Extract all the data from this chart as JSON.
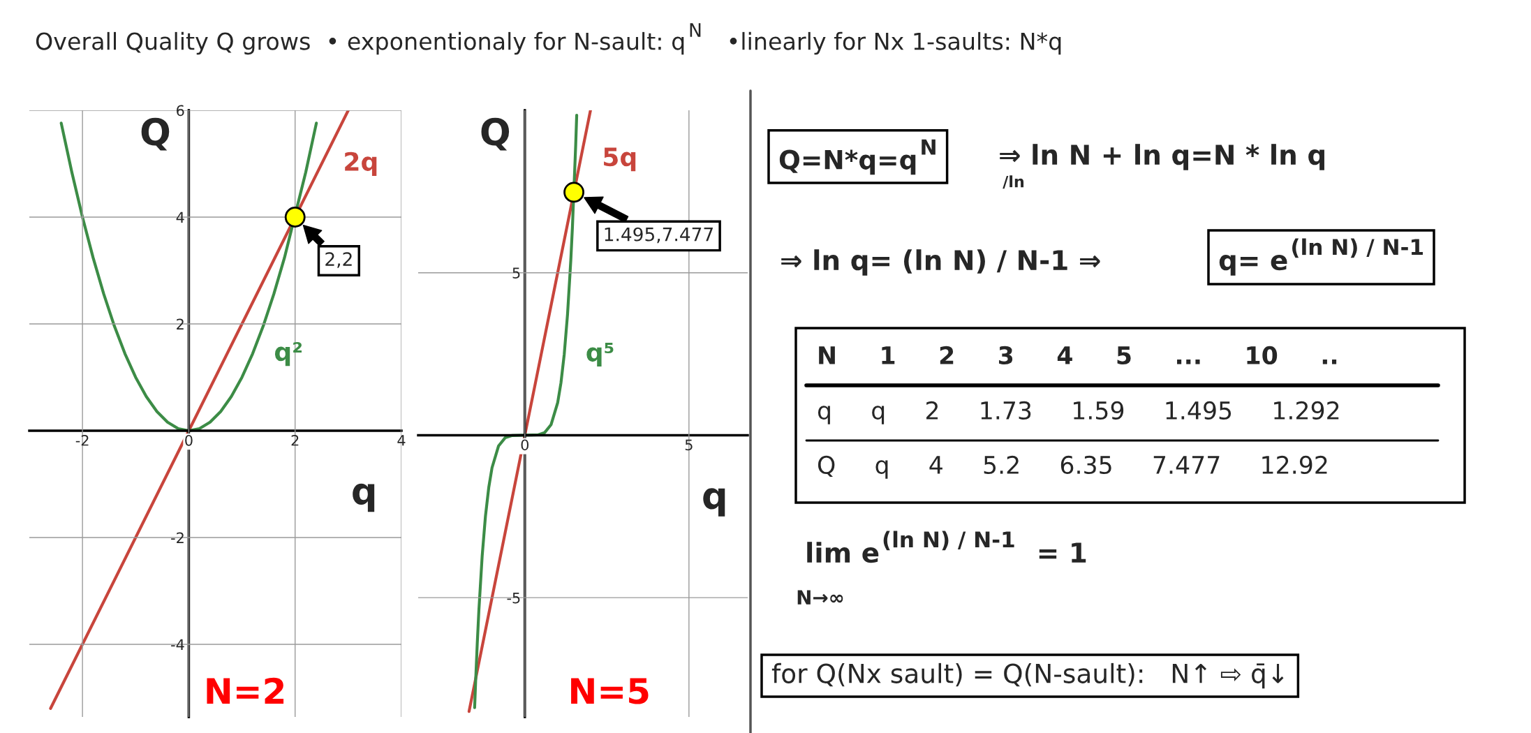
{
  "chart_data": [
    {
      "type": "line",
      "xlabel": "q",
      "ylabel": "Q",
      "xlim": [
        -3,
        4
      ],
      "ylim": [
        -5.36,
        6
      ],
      "xticks": [
        -2,
        0,
        2,
        4
      ],
      "yticks": [
        -4,
        -2,
        2,
        4,
        6
      ],
      "grid": true,
      "series": [
        {
          "name": "2q",
          "color": "#c8453c",
          "x": [
            -2.6,
            0,
            1,
            2.5,
            3
          ],
          "values": [
            -5.2,
            0,
            2,
            5,
            6
          ]
        },
        {
          "name": "q²",
          "color": "#3c8c46",
          "x": [
            -2.4,
            -2.2,
            -2.0,
            -1.8,
            -1.6,
            -1.4,
            -1.2,
            -1.0,
            -0.8,
            -0.6,
            -0.4,
            -0.2,
            0,
            0.2,
            0.4,
            0.6,
            0.8,
            1.0,
            1.2,
            1.4,
            1.6,
            1.8,
            2.2,
            2.4
          ],
          "values": [
            5.76,
            4.84,
            4.0,
            3.24,
            2.56,
            1.96,
            1.44,
            1.0,
            0.64,
            0.36,
            0.16,
            0.04,
            0,
            0.04,
            0.16,
            0.36,
            0.64,
            1.0,
            1.44,
            1.96,
            2.56,
            3.24,
            4.84,
            5.76
          ]
        },
        {
          "type": "scatter",
          "color": "#ffff00",
          "marker": "circle",
          "x": [
            2
          ],
          "values": [
            4
          ]
        }
      ],
      "annotations": [
        {
          "text": "2,2",
          "x": 2,
          "y": 4
        },
        "N=2"
      ]
    },
    {
      "type": "line",
      "xlabel": "q",
      "ylabel": "Q",
      "xlim": [
        -3.25,
        6.79
      ],
      "ylim": [
        -8.67,
        10
      ],
      "xticks": [
        0,
        5
      ],
      "yticks": [
        -5,
        5
      ],
      "grid": true,
      "series": [
        {
          "name": "5q",
          "color": "#c8453c",
          "x": [
            -1.7,
            0,
            1,
            1.7,
            2
          ],
          "values": [
            -8.5,
            0,
            5,
            8.5,
            10
          ]
        },
        {
          "name": "q⁵",
          "color": "#3c8c46",
          "x": [
            -1.53,
            -1.5,
            -1.45,
            -1.4,
            -1.3,
            -1.2,
            -1.1,
            -1.0,
            -0.8,
            -0.6,
            -0.4,
            0,
            0.4,
            0.6,
            0.8,
            1.0,
            1.1,
            1.2,
            1.3,
            1.4,
            1.45,
            1.55,
            1.58
          ],
          "values": [
            -8.384,
            -7.594,
            -6.41,
            -5.378,
            -3.713,
            -2.488,
            -1.611,
            -1.0,
            -0.328,
            -0.078,
            -0.01,
            0,
            0.01,
            0.078,
            0.328,
            1.0,
            1.611,
            2.488,
            3.713,
            5.378,
            6.41,
            8.947,
            9.847
          ]
        },
        {
          "type": "scatter",
          "color": "#ffff00",
          "marker": "circle",
          "x": [
            1.495
          ],
          "values": [
            7.477
          ]
        }
      ],
      "annotations": [
        {
          "text": "1.495,7.477",
          "x": 1.495,
          "y": 7.477
        },
        "N=5"
      ]
    },
    {
      "type": "other",
      "title": "Overall Quality Q grows  • exponentionaly for N-sault: q$^{N}$   •linearly for Nx 1-saults: N*q",
      "annotations": [
        "Q=N*q=q$^{N}$",
        "⇒ ln N + ln q=N * ln q",
        "/ln",
        "⇒ ln q= (ln N) / N-1 ⇒",
        "q= e$^{(ln N) / N-1}$",
        "N 1 2 3 4 5 ... 10 ..",
        "q q 2 1.73 1.59 1.495 1.292",
        "Q q 4 5.2 6.35 7.477 12.92",
        "lim e$^{(ln N) / N-1}$  = 1",
        "N→∞",
        "for Q(Nx sault) = Q(N-sault):   N↑ ⇨ q̄↓"
      ]
    }
  ]
}
